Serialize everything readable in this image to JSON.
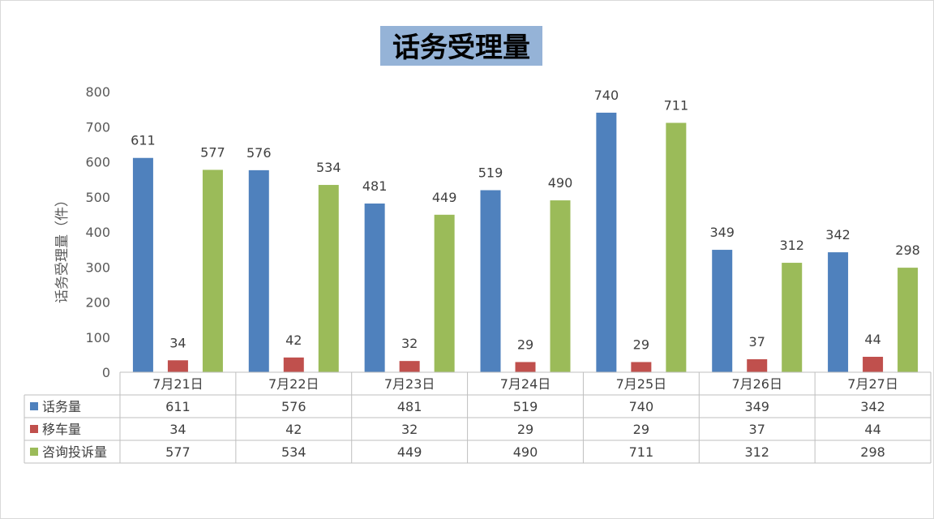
{
  "chart_data": {
    "type": "bar",
    "title": "话务受理量",
    "ylabel": "话务受理量（件）",
    "xlabel": "",
    "categories": [
      "7月21日",
      "7月22日",
      "7月23日",
      "7月24日",
      "7月25日",
      "7月26日",
      "7月27日"
    ],
    "series": [
      {
        "name": "话务量",
        "color": "#4f81bd",
        "values": [
          611,
          576,
          481,
          519,
          740,
          349,
          342
        ]
      },
      {
        "name": "移车量",
        "color": "#c0504d",
        "values": [
          34,
          42,
          32,
          29,
          29,
          37,
          44
        ]
      },
      {
        "name": "咨询投诉量",
        "color": "#9bbb59",
        "values": [
          577,
          534,
          449,
          490,
          711,
          312,
          298
        ]
      }
    ],
    "ylim": [
      0,
      800
    ],
    "yticks": [
      0,
      100,
      200,
      300,
      400,
      500,
      600,
      700,
      800
    ],
    "grid": false,
    "legend": "data-table",
    "title_background": "#95b3d7"
  }
}
